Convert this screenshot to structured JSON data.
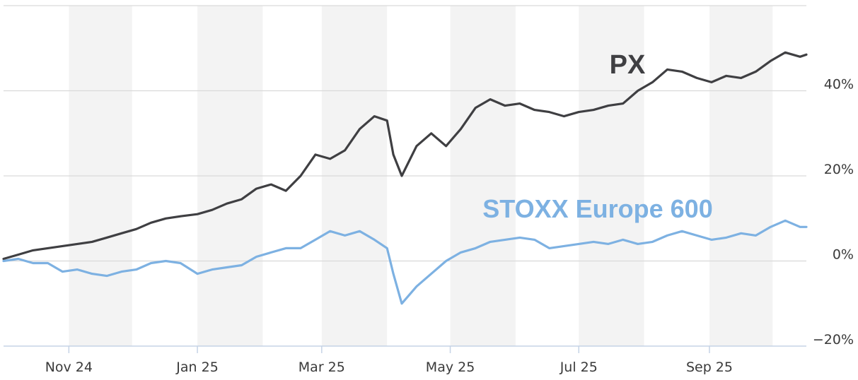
{
  "colors": {
    "px": "#3f3f42",
    "stoxx": "#7db1e2",
    "band": "#f3f3f3",
    "grid": "#d9d9d9",
    "axis": "#c5d3e6"
  },
  "chart_data": {
    "type": "line",
    "title": "",
    "xlabel": "",
    "ylabel": "",
    "x_range": [
      "2024-10-01",
      "2025-10-17"
    ],
    "ylim": [
      -20,
      60
    ],
    "y_unit": "%",
    "x_ticks": [
      {
        "label": "Nov 24",
        "date": "2024-11-01"
      },
      {
        "label": "Jan 25",
        "date": "2025-01-01"
      },
      {
        "label": "Mar 25",
        "date": "2025-03-01"
      },
      {
        "label": "May 25",
        "date": "2025-05-01"
      },
      {
        "label": "Jul 25",
        "date": "2025-07-01"
      },
      {
        "label": "Sep 25",
        "date": "2025-09-01"
      }
    ],
    "y_ticks": [
      {
        "label": "40%",
        "value": 40
      },
      {
        "label": "20%",
        "value": 20
      },
      {
        "label": "0%",
        "value": 0
      },
      {
        "label": "−20%",
        "value": -20
      }
    ],
    "alternating_month_bands": true,
    "grid": true,
    "series": [
      {
        "name": "PX",
        "values": [
          [
            "2024-10-01",
            0.5
          ],
          [
            "2024-10-08",
            1.5
          ],
          [
            "2024-10-15",
            2.5
          ],
          [
            "2024-10-22",
            3.0
          ],
          [
            "2024-10-29",
            3.5
          ],
          [
            "2024-11-05",
            4.0
          ],
          [
            "2024-11-12",
            4.5
          ],
          [
            "2024-11-19",
            5.5
          ],
          [
            "2024-11-26",
            6.5
          ],
          [
            "2024-12-03",
            7.5
          ],
          [
            "2024-12-10",
            9.0
          ],
          [
            "2024-12-17",
            10.0
          ],
          [
            "2024-12-24",
            10.5
          ],
          [
            "2025-01-01",
            11.0
          ],
          [
            "2025-01-08",
            12.0
          ],
          [
            "2025-01-15",
            13.5
          ],
          [
            "2025-01-22",
            14.5
          ],
          [
            "2025-01-29",
            17.0
          ],
          [
            "2025-02-05",
            18.0
          ],
          [
            "2025-02-12",
            16.5
          ],
          [
            "2025-02-19",
            20.0
          ],
          [
            "2025-02-26",
            25.0
          ],
          [
            "2025-03-05",
            24.0
          ],
          [
            "2025-03-12",
            26.0
          ],
          [
            "2025-03-19",
            31.0
          ],
          [
            "2025-03-26",
            34.0
          ],
          [
            "2025-04-01",
            33.0
          ],
          [
            "2025-04-04",
            25.0
          ],
          [
            "2025-04-08",
            20.0
          ],
          [
            "2025-04-15",
            27.0
          ],
          [
            "2025-04-22",
            30.0
          ],
          [
            "2025-04-29",
            27.0
          ],
          [
            "2025-05-06",
            31.0
          ],
          [
            "2025-05-13",
            36.0
          ],
          [
            "2025-05-20",
            38.0
          ],
          [
            "2025-05-27",
            36.5
          ],
          [
            "2025-06-03",
            37.0
          ],
          [
            "2025-06-10",
            35.5
          ],
          [
            "2025-06-17",
            35.0
          ],
          [
            "2025-06-24",
            34.0
          ],
          [
            "2025-07-01",
            35.0
          ],
          [
            "2025-07-08",
            35.5
          ],
          [
            "2025-07-15",
            36.5
          ],
          [
            "2025-07-22",
            37.0
          ],
          [
            "2025-07-29",
            40.0
          ],
          [
            "2025-08-05",
            42.0
          ],
          [
            "2025-08-12",
            45.0
          ],
          [
            "2025-08-19",
            44.5
          ],
          [
            "2025-08-26",
            43.0
          ],
          [
            "2025-09-02",
            42.0
          ],
          [
            "2025-09-09",
            43.5
          ],
          [
            "2025-09-16",
            43.0
          ],
          [
            "2025-09-23",
            44.5
          ],
          [
            "2025-09-30",
            47.0
          ],
          [
            "2025-10-07",
            49.0
          ],
          [
            "2025-10-14",
            48.0
          ],
          [
            "2025-10-17",
            48.5
          ]
        ]
      },
      {
        "name": "STOXX Europe 600",
        "values": [
          [
            "2024-10-01",
            0.0
          ],
          [
            "2024-10-08",
            0.5
          ],
          [
            "2024-10-15",
            -0.5
          ],
          [
            "2024-10-22",
            -0.5
          ],
          [
            "2024-10-29",
            -2.5
          ],
          [
            "2024-11-05",
            -2.0
          ],
          [
            "2024-11-12",
            -3.0
          ],
          [
            "2024-11-19",
            -3.5
          ],
          [
            "2024-11-26",
            -2.5
          ],
          [
            "2024-12-03",
            -2.0
          ],
          [
            "2024-12-10",
            -0.5
          ],
          [
            "2024-12-17",
            0.0
          ],
          [
            "2024-12-24",
            -0.5
          ],
          [
            "2025-01-01",
            -3.0
          ],
          [
            "2025-01-08",
            -2.0
          ],
          [
            "2025-01-15",
            -1.5
          ],
          [
            "2025-01-22",
            -1.0
          ],
          [
            "2025-01-29",
            1.0
          ],
          [
            "2025-02-05",
            2.0
          ],
          [
            "2025-02-12",
            3.0
          ],
          [
            "2025-02-19",
            3.0
          ],
          [
            "2025-02-26",
            5.0
          ],
          [
            "2025-03-05",
            7.0
          ],
          [
            "2025-03-12",
            6.0
          ],
          [
            "2025-03-19",
            7.0
          ],
          [
            "2025-03-26",
            5.0
          ],
          [
            "2025-04-01",
            3.0
          ],
          [
            "2025-04-04",
            -3.0
          ],
          [
            "2025-04-08",
            -10.0
          ],
          [
            "2025-04-15",
            -6.0
          ],
          [
            "2025-04-22",
            -3.0
          ],
          [
            "2025-04-29",
            0.0
          ],
          [
            "2025-05-06",
            2.0
          ],
          [
            "2025-05-13",
            3.0
          ],
          [
            "2025-05-20",
            4.5
          ],
          [
            "2025-05-27",
            5.0
          ],
          [
            "2025-06-03",
            5.5
          ],
          [
            "2025-06-10",
            5.0
          ],
          [
            "2025-06-17",
            3.0
          ],
          [
            "2025-06-24",
            3.5
          ],
          [
            "2025-07-01",
            4.0
          ],
          [
            "2025-07-08",
            4.5
          ],
          [
            "2025-07-15",
            4.0
          ],
          [
            "2025-07-22",
            5.0
          ],
          [
            "2025-07-29",
            4.0
          ],
          [
            "2025-08-05",
            4.5
          ],
          [
            "2025-08-12",
            6.0
          ],
          [
            "2025-08-19",
            7.0
          ],
          [
            "2025-08-26",
            6.0
          ],
          [
            "2025-09-02",
            5.0
          ],
          [
            "2025-09-09",
            5.5
          ],
          [
            "2025-09-16",
            6.5
          ],
          [
            "2025-09-23",
            6.0
          ],
          [
            "2025-09-30",
            8.0
          ],
          [
            "2025-10-07",
            9.5
          ],
          [
            "2025-10-14",
            8.0
          ],
          [
            "2025-10-17",
            8.0
          ]
        ]
      }
    ],
    "labels": [
      {
        "text": "PX"
      },
      {
        "text": "STOXX Europe 600"
      }
    ]
  }
}
